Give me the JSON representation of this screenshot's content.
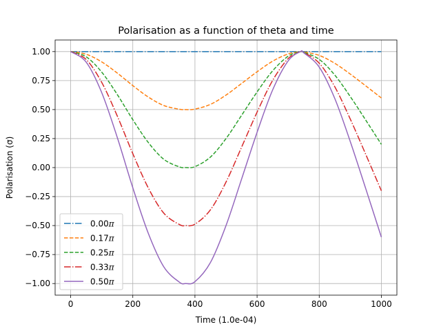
{
  "chart_data": {
    "type": "line",
    "title": "Polarisation as a function of theta and time",
    "xlabel": "Time (1.0e-04)",
    "ylabel": "Polarisation (σ)",
    "xlim": [
      -50,
      1050
    ],
    "ylim": [
      -1.1,
      1.1
    ],
    "x_ticks": [
      0,
      200,
      400,
      600,
      800,
      1000
    ],
    "x_tick_labels": [
      "0",
      "200",
      "400",
      "600",
      "800",
      "1000"
    ],
    "y_ticks": [
      -1.0,
      -0.75,
      -0.5,
      -0.25,
      0.0,
      0.25,
      0.5,
      0.75,
      1.0
    ],
    "y_tick_labels": [
      "−1.00",
      "−0.75",
      "−0.50",
      "−0.25",
      "0.00",
      "0.25",
      "0.50",
      "0.75",
      "1.00"
    ],
    "grid": true,
    "legend_position": "lower-left",
    "x": [
      0,
      50,
      100,
      150,
      200,
      250,
      300,
      350,
      370,
      400,
      450,
      500,
      550,
      600,
      650,
      700,
      740,
      750,
      800,
      850,
      900,
      950,
      1000
    ],
    "series": [
      {
        "name": "0.00",
        "color": "#1f77b4",
        "style": "dashdot",
        "values": [
          1.0,
          1.0,
          1.0,
          1.0,
          1.0,
          1.0,
          1.0,
          1.0,
          1.0,
          1.0,
          1.0,
          1.0,
          1.0,
          1.0,
          1.0,
          1.0,
          1.0,
          1.0,
          1.0,
          1.0,
          1.0,
          1.0,
          1.0
        ]
      },
      {
        "name": "0.17",
        "color": "#ff7f0e",
        "style": "dashed",
        "values": [
          1.0,
          0.977,
          0.911,
          0.815,
          0.707,
          0.608,
          0.535,
          0.503,
          0.5,
          0.504,
          0.545,
          0.625,
          0.725,
          0.826,
          0.917,
          0.98,
          1.0,
          0.998,
          0.967,
          0.899,
          0.806,
          0.704,
          0.6
        ]
      },
      {
        "name": "0.25",
        "color": "#2ca02c",
        "style": "dashed",
        "values": [
          1.0,
          0.955,
          0.823,
          0.63,
          0.413,
          0.216,
          0.071,
          0.006,
          0.0,
          0.008,
          0.091,
          0.25,
          0.45,
          0.652,
          0.834,
          0.96,
          1.0,
          0.995,
          0.933,
          0.798,
          0.612,
          0.408,
          0.2
        ]
      },
      {
        "name": "0.33",
        "color": "#d62728",
        "style": "dashdot",
        "values": [
          1.0,
          0.932,
          0.734,
          0.445,
          0.12,
          -0.176,
          -0.394,
          -0.491,
          -0.5,
          -0.488,
          -0.364,
          -0.125,
          0.175,
          0.478,
          0.751,
          0.94,
          1.0,
          0.993,
          0.9,
          0.697,
          0.418,
          0.112,
          -0.2
        ]
      },
      {
        "name": "0.50",
        "color": "#9467bd",
        "style": "solid",
        "values": [
          1.0,
          0.909,
          0.646,
          0.26,
          -0.174,
          -0.568,
          -0.857,
          -0.988,
          -1.0,
          -0.984,
          -0.818,
          -0.5,
          -0.1,
          0.304,
          0.669,
          0.92,
          1.0,
          0.99,
          0.866,
          0.596,
          0.224,
          -0.184,
          -0.6
        ]
      }
    ]
  }
}
